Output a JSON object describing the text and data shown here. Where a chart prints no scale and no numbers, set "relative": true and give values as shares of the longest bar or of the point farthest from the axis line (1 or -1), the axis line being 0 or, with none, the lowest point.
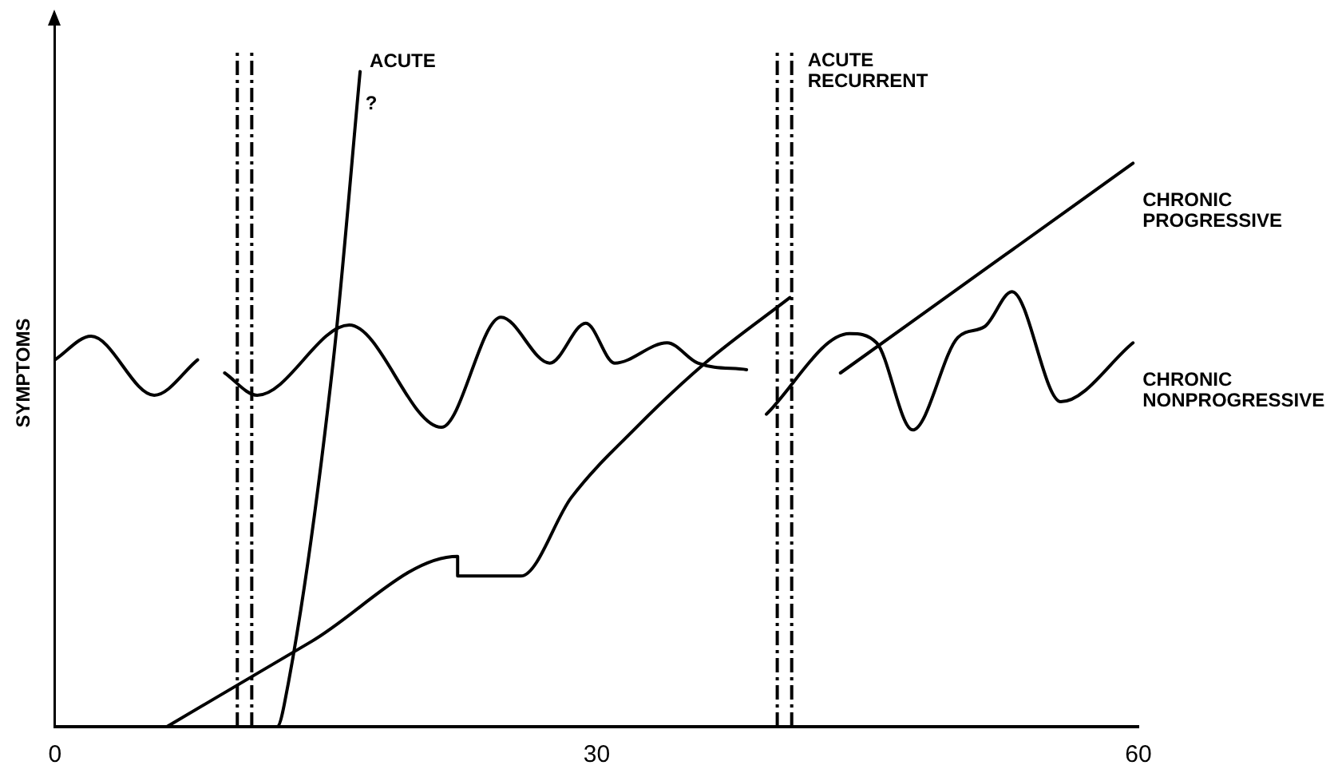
{
  "chart_data": {
    "type": "line",
    "relative": true,
    "ylabel": "SYMPTOMS",
    "xlim": [
      0,
      60
    ],
    "xticks": [
      0,
      30,
      60
    ],
    "grid": false,
    "legend": false,
    "marker": "none",
    "line_style": "solid",
    "series": [
      {
        "name": "ACUTE",
        "color": "#000000",
        "x": [
          11.2,
          12.3,
          12.7,
          15.4,
          16.9
        ],
        "values": [
          0,
          0,
          0.034,
          0.555,
          1
        ]
      },
      {
        "name": "CHRONIC PROGRESSIVE",
        "color": "#000000",
        "x": [
          6.2,
          14.2,
          22.3,
          22.3,
          25.8,
          28.6,
          32.2,
          36,
          40.7,
          42,
          43.5,
          51.6,
          59.7
        ],
        "values": [
          0,
          0.13,
          0.26,
          0.23,
          0.23,
          0.35,
          0.457,
          0.555,
          0.655,
          null,
          0.54,
          0.7,
          0.86
        ]
      },
      {
        "name": "CHRONIC NONPROGRESSIVE",
        "color": "#000000",
        "x": [
          0,
          2,
          5.5,
          7.9,
          8.6,
          9.4,
          11.2,
          16.3,
          21.4,
          24.7,
          27.4,
          29.4,
          31,
          33.9,
          35.6,
          38.3,
          38.8,
          39.4,
          44,
          45.5,
          47.5,
          50,
          51.5,
          53,
          55.7,
          59.7
        ],
        "values": [
          0.56,
          0.596,
          0.506,
          0.56,
          null,
          0.54,
          0.506,
          0.613,
          0.457,
          0.625,
          0.555,
          0.616,
          0.555,
          0.586,
          0.555,
          0.545,
          null,
          0.477,
          0.6,
          0.586,
          0.453,
          0.594,
          0.611,
          0.664,
          0.496,
          0.586
        ]
      }
    ],
    "ref_lines": [
      {
        "axis": "x",
        "value": 10.1,
        "line_style": "dashed"
      },
      {
        "axis": "x",
        "value": 10.9,
        "line_style": "dashed"
      },
      {
        "axis": "x",
        "value": 40,
        "line_style": "dashed"
      },
      {
        "axis": "x",
        "value": 40.8,
        "line_style": "dashed",
        "label": "ACUTE RECURRENT"
      }
    ],
    "annotations": [
      {
        "text": "?",
        "x": 17.2,
        "y": 0.95
      }
    ]
  }
}
